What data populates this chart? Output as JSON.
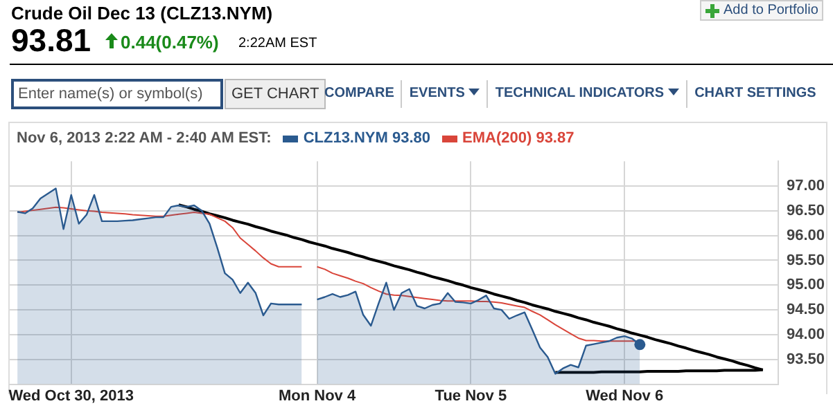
{
  "chart_data": {
    "type": "line",
    "title": "Crude Oil Dec 13 (CLZ13.NYM)",
    "annotations": [
      "93.81",
      "0.44(0.47%)",
      "2:22AM EST",
      "Add to Portfolio",
      "Enter name(s) or symbol(s)",
      "GET CHART",
      "COMPARE",
      "EVENTS",
      "TECHNICAL INDICATORS",
      "CHART SETTINGS"
    ],
    "legend_title": "Nov 6, 2013 2:22 AM - 2:40 AM EST:",
    "legend": "top left",
    "grid": true,
    "marker": "none",
    "categories": [
      null,
      null,
      null,
      null,
      null,
      null,
      null,
      null,
      "Wed Oct 30, 2013",
      null,
      null,
      null,
      null,
      null,
      null,
      null,
      null,
      null,
      null,
      null,
      null,
      null,
      null,
      null,
      null,
      null,
      null,
      null,
      null,
      null,
      null,
      null,
      null,
      null,
      null,
      null,
      null,
      null,
      null,
      null,
      "Mon Nov 4",
      null,
      null,
      null,
      null,
      null,
      null,
      null,
      null,
      null,
      null,
      null,
      null,
      null,
      null,
      null,
      null,
      null,
      null,
      null,
      "Tue Nov 5",
      null,
      null,
      null,
      null,
      null,
      null,
      null,
      null,
      null,
      null,
      null,
      null,
      null,
      null,
      null,
      null,
      null,
      null,
      null,
      "Wed Nov 6",
      null,
      null,
      null,
      null,
      null,
      null,
      null,
      null,
      null,
      null,
      null,
      null,
      null,
      null,
      null,
      null,
      null,
      null,
      null,
      null
    ],
    "ylim": [
      93.0,
      97.5
    ],
    "yticks": [
      {
        "value": 93.5,
        "label": "93.50"
      },
      {
        "value": 94,
        "label": "94.00"
      },
      {
        "value": 94.5,
        "label": "94.50"
      },
      {
        "value": 95,
        "label": "95.00"
      },
      {
        "value": 95.5,
        "label": "95.50"
      },
      {
        "value": 96,
        "label": "96.00"
      },
      {
        "value": 96.5,
        "label": "96.50"
      },
      {
        "value": 97,
        "label": "97.00"
      }
    ],
    "series": [
      {
        "name": "CLZ13.NYM 93.80",
        "type": "area",
        "color": "#2a5a8f",
        "values": [
          null,
          96.48,
          96.45,
          96.55,
          96.75,
          96.85,
          96.95,
          96.13,
          96.82,
          96.24,
          96.42,
          96.82,
          96.29,
          96.29,
          96.29,
          96.3,
          96.31,
          96.33,
          96.35,
          96.37,
          96.37,
          96.58,
          96.61,
          96.58,
          96.61,
          96.5,
          96.24,
          95.76,
          95.24,
          95.11,
          94.84,
          95.05,
          94.84,
          94.39,
          94.63,
          94.61,
          94.61,
          94.61,
          94.61,
          null,
          94.71,
          94.76,
          94.82,
          94.76,
          94.8,
          94.87,
          94.4,
          94.18,
          94.63,
          95.05,
          94.5,
          94.84,
          94.92,
          94.58,
          94.53,
          94.6,
          94.63,
          94.84,
          94.66,
          94.65,
          94.63,
          94.7,
          94.79,
          94.53,
          94.5,
          94.32,
          94.39,
          94.45,
          94.1,
          93.74,
          93.55,
          93.21,
          93.32,
          93.39,
          93.34,
          93.78,
          93.81,
          93.84,
          93.87,
          93.94,
          93.97,
          93.92,
          93.8,
          null,
          null,
          null,
          null,
          null,
          null,
          null,
          null,
          null,
          null,
          null,
          null,
          null,
          null,
          null,
          null,
          null,
          null
        ]
      },
      {
        "name": "EMA(200) 93.87",
        "type": "line",
        "color": "#d9453a",
        "values": [
          null,
          96.47,
          96.49,
          96.51,
          96.53,
          96.55,
          96.57,
          96.56,
          96.54,
          96.52,
          96.5,
          96.49,
          96.47,
          96.46,
          96.45,
          96.44,
          96.42,
          96.41,
          96.4,
          96.39,
          96.39,
          96.41,
          96.43,
          96.45,
          96.47,
          96.45,
          96.43,
          96.36,
          96.29,
          96.16,
          95.95,
          95.82,
          95.69,
          95.55,
          95.43,
          95.37,
          95.37,
          95.37,
          95.37,
          null,
          95.37,
          95.32,
          95.24,
          95.19,
          95.14,
          95.08,
          95.03,
          94.95,
          94.88,
          94.82,
          94.8,
          94.79,
          94.77,
          94.75,
          94.73,
          94.71,
          94.69,
          94.68,
          94.68,
          94.68,
          94.68,
          94.67,
          94.67,
          94.66,
          94.64,
          94.61,
          94.58,
          94.55,
          94.47,
          94.4,
          94.3,
          94.2,
          94.11,
          94.02,
          93.93,
          93.88,
          93.88,
          93.87,
          93.87,
          93.87,
          93.87,
          93.87,
          93.87,
          null,
          null,
          null,
          null,
          null,
          null,
          null,
          null,
          null,
          null,
          null,
          null,
          null,
          null,
          null,
          null,
          null,
          null
        ]
      },
      {
        "type": "line",
        "color": "#000000",
        "values": [
          null,
          null,
          null,
          null,
          null,
          null,
          null,
          null,
          null,
          null,
          null,
          null,
          null,
          null,
          null,
          null,
          null,
          null,
          null,
          null,
          null,
          null,
          96.62,
          96.58,
          96.53,
          96.49,
          96.44,
          96.4,
          96.36,
          96.31,
          96.27,
          96.23,
          96.18,
          96.14,
          96.09,
          96.05,
          96.01,
          95.96,
          95.92,
          95.87,
          95.83,
          95.79,
          95.74,
          95.7,
          95.66,
          95.61,
          95.57,
          95.52,
          95.48,
          95.44,
          95.39,
          95.35,
          95.31,
          95.26,
          95.22,
          95.17,
          95.13,
          95.09,
          95.04,
          95,
          94.95,
          94.91,
          94.87,
          94.82,
          94.78,
          94.74,
          94.69,
          94.65,
          94.6,
          94.56,
          94.52,
          94.47,
          94.43,
          94.39,
          94.34,
          94.3,
          94.25,
          94.21,
          94.17,
          94.12,
          94.08,
          94.03,
          93.99,
          93.95,
          93.9,
          93.86,
          93.82,
          93.77,
          93.73,
          93.68,
          93.64,
          93.6,
          93.55,
          93.51,
          93.47,
          93.42,
          93.38,
          93.33,
          93.29,
          null,
          null
        ]
      },
      {
        "type": "line",
        "color": "#000000",
        "values": [
          null,
          null,
          null,
          null,
          null,
          null,
          null,
          null,
          null,
          null,
          null,
          null,
          null,
          null,
          null,
          null,
          null,
          null,
          null,
          null,
          null,
          null,
          null,
          null,
          null,
          null,
          null,
          null,
          null,
          null,
          null,
          null,
          null,
          null,
          null,
          null,
          null,
          null,
          null,
          null,
          null,
          null,
          null,
          null,
          null,
          null,
          null,
          null,
          null,
          null,
          null,
          null,
          null,
          null,
          null,
          null,
          null,
          null,
          null,
          null,
          null,
          null,
          null,
          null,
          null,
          null,
          null,
          null,
          null,
          null,
          null,
          93.24,
          93.24,
          93.24,
          93.24,
          93.24,
          93.24,
          93.25,
          93.25,
          93.25,
          93.25,
          93.25,
          93.25,
          93.26,
          93.26,
          93.26,
          93.26,
          93.26,
          93.27,
          93.27,
          93.27,
          93.27,
          93.27,
          93.28,
          93.28,
          93.28,
          93.28,
          93.28,
          93.29,
          null,
          null
        ]
      },
      {
        "type": "scatter",
        "color": "#2a5a8f",
        "marker": "circle",
        "values": [
          null,
          null,
          null,
          null,
          null,
          null,
          null,
          null,
          null,
          null,
          null,
          null,
          null,
          null,
          null,
          null,
          null,
          null,
          null,
          null,
          null,
          null,
          null,
          null,
          null,
          null,
          null,
          null,
          null,
          null,
          null,
          null,
          null,
          null,
          null,
          null,
          null,
          null,
          null,
          null,
          null,
          null,
          null,
          null,
          null,
          null,
          null,
          null,
          null,
          null,
          null,
          null,
          null,
          null,
          null,
          null,
          null,
          null,
          null,
          null,
          null,
          null,
          null,
          null,
          null,
          null,
          null,
          null,
          null,
          null,
          null,
          null,
          null,
          null,
          null,
          null,
          null,
          null,
          null,
          null,
          null,
          null,
          93.8,
          null,
          null,
          null,
          null,
          null,
          null,
          null,
          null,
          null,
          null,
          null,
          null,
          null,
          null,
          null,
          null,
          null,
          null
        ]
      }
    ]
  }
}
